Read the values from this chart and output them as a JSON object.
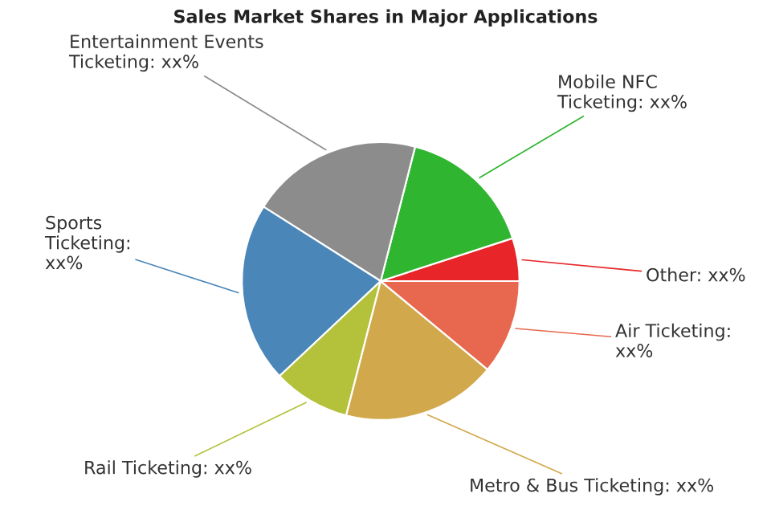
{
  "chart_data": {
    "type": "pie",
    "title": "Sales Market Shares in Major Applications",
    "categories": [
      "Other: xx%",
      "Mobile NFC Ticketing: xx%",
      "Entertainment Events Ticketing: xx%",
      "Sports Ticketing: xx%",
      "Rail Ticketing: xx%",
      "Metro & Bus Ticketing: xx%",
      "Air Ticketing: xx%"
    ],
    "values": [
      5,
      16,
      20,
      21,
      9,
      18,
      11
    ],
    "colors": [
      "#e8262a",
      "#2fb52f",
      "#8c8c8c",
      "#4a86b8",
      "#b4c13a",
      "#d2a84c",
      "#e8684f"
    ],
    "legend": false
  }
}
